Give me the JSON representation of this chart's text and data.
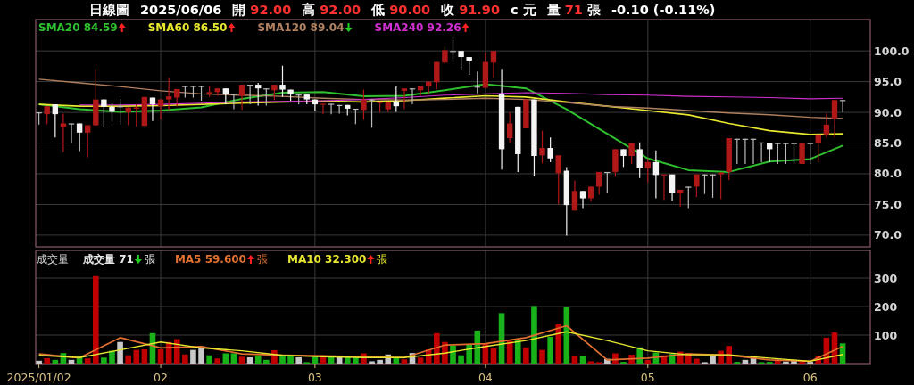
{
  "chart_data": [
    {
      "type": "candlestick",
      "annotations": [
        "日線圖",
        "2025/06/06",
        "開 92.00",
        "高 92.00",
        "低 90.00",
        "收 91.90",
        "c 元",
        "量 71 張",
        "-0.10 (-0.11%)"
      ],
      "categories": [
        "2025/01/02",
        null,
        null,
        null,
        null,
        null,
        null,
        null,
        null,
        null,
        null,
        null,
        null,
        null,
        null,
        "02",
        null,
        null,
        null,
        null,
        null,
        null,
        null,
        null,
        null,
        null,
        null,
        null,
        null,
        null,
        null,
        null,
        null,
        null,
        "03",
        null,
        null,
        null,
        null,
        null,
        null,
        null,
        null,
        null,
        null,
        null,
        null,
        null,
        null,
        null,
        null,
        null,
        null,
        null,
        null,
        "04",
        null,
        null,
        null,
        null,
        null,
        null,
        null,
        null,
        null,
        null,
        null,
        null,
        null,
        null,
        null,
        null,
        null,
        null,
        null,
        "05",
        null,
        null,
        null,
        null,
        null,
        null,
        null,
        null,
        null,
        null,
        null,
        null,
        null,
        null,
        null,
        null,
        null,
        null,
        null,
        "06",
        null,
        null,
        null,
        null
      ],
      "ohlc": [
        [
          90.0,
          90.0,
          88.0,
          89.9
        ],
        [
          89.7,
          91.0,
          88.1,
          91.0
        ],
        [
          91.3,
          91.3,
          85.9,
          89.7
        ],
        [
          87.6,
          89.8,
          83.5,
          88.2
        ],
        [
          88.2,
          88.2,
          85.0,
          88.1
        ],
        [
          88.2,
          88.2,
          83.7,
          86.7
        ],
        [
          86.7,
          87.9,
          82.7,
          87.9
        ],
        [
          87.9,
          97.1,
          87.9,
          92.1
        ],
        [
          92.1,
          92.1,
          87.6,
          90.9
        ],
        [
          90.9,
          91.5,
          88.5,
          90.1
        ],
        [
          91.0,
          92.2,
          88.0,
          90.9
        ],
        [
          90.0,
          90.8,
          87.9,
          90.8
        ],
        [
          90.6,
          91.3,
          87.7,
          90.8
        ],
        [
          87.8,
          92.5,
          87.8,
          92.5
        ],
        [
          92.4,
          92.4,
          88.6,
          91.3
        ],
        [
          91.0,
          92.1,
          88.8,
          92.1
        ],
        [
          92.1,
          95.6,
          90.4,
          92.6
        ],
        [
          92.4,
          93.8,
          91.0,
          93.8
        ],
        [
          94.3,
          94.3,
          92.4,
          94.2
        ],
        [
          94.3,
          94.3,
          92.4,
          94.2
        ],
        [
          94.3,
          94.3,
          91.9,
          94.2
        ],
        [
          92.9,
          94.2,
          92.5,
          93.3
        ],
        [
          93.3,
          93.9,
          92.7,
          93.9
        ],
        [
          93.9,
          93.9,
          91.3,
          93.0
        ],
        [
          93.0,
          93.0,
          90.5,
          92.9
        ],
        [
          92.7,
          94.5,
          90.4,
          94.5
        ],
        [
          94.5,
          94.5,
          91.3,
          94.4
        ],
        [
          94.5,
          94.8,
          91.1,
          93.9
        ],
        [
          93.9,
          93.9,
          91.1,
          93.8
        ],
        [
          93.6,
          94.5,
          92.0,
          94.5
        ],
        [
          94.5,
          97.6,
          92.5,
          93.7
        ],
        [
          93.7,
          93.7,
          91.9,
          92.9
        ],
        [
          92.9,
          92.9,
          91.3,
          92.8
        ],
        [
          92.9,
          92.9,
          91.3,
          92.1
        ],
        [
          92.1,
          92.1,
          90.3,
          91.3
        ],
        [
          91.3,
          91.4,
          89.7,
          91.4
        ],
        [
          91.4,
          91.4,
          89.7,
          91.3
        ],
        [
          91.2,
          91.2,
          89.8,
          91.1
        ],
        [
          91.2,
          91.2,
          89.5,
          90.6
        ],
        [
          90.6,
          90.6,
          88.1,
          90.5
        ],
        [
          90.4,
          93.7,
          88.8,
          92.1
        ],
        [
          92.1,
          92.1,
          87.5,
          92.0
        ],
        [
          91.5,
          91.7,
          90.0,
          91.7
        ],
        [
          90.5,
          91.7,
          90.0,
          91.7
        ],
        [
          91.8,
          94.2,
          90.1,
          91.0
        ],
        [
          93.5,
          93.9,
          90.5,
          93.9
        ],
        [
          93.9,
          93.9,
          91.3,
          93.8
        ],
        [
          93.6,
          94.3,
          92.7,
          94.3
        ],
        [
          94.2,
          95.0,
          93.0,
          95.0
        ],
        [
          94.9,
          98.2,
          93.8,
          98.2
        ],
        [
          98.1,
          100.7,
          97.9,
          100.1
        ],
        [
          100.0,
          102.2,
          98.2,
          99.9
        ],
        [
          100.0,
          100.0,
          96.8,
          99.0
        ],
        [
          99.0,
          99.0,
          96.1,
          98.4
        ],
        [
          94.2,
          96.6,
          93.1,
          94.1
        ],
        [
          94.0,
          99.8,
          93.9,
          98.2
        ],
        [
          98.1,
          100.0,
          95.6,
          100.0
        ],
        [
          93.0,
          97.1,
          80.7,
          84.0
        ],
        [
          85.8,
          90.0,
          85.1,
          88.2
        ],
        [
          90.9,
          90.9,
          80.3,
          83.2
        ],
        [
          87.4,
          92.1,
          87.4,
          92.1
        ],
        [
          92.1,
          92.1,
          79.6,
          82.9
        ],
        [
          83.0,
          87.0,
          81.7,
          84.2
        ],
        [
          84.2,
          85.9,
          81.9,
          82.5
        ],
        [
          80.1,
          83.0,
          75.0,
          83.0
        ],
        [
          80.5,
          81.1,
          69.9,
          74.9
        ],
        [
          74.0,
          78.9,
          74.0,
          77.2
        ],
        [
          77.2,
          77.2,
          74.4,
          76.0
        ],
        [
          76.0,
          77.9,
          75.5,
          77.9
        ],
        [
          77.9,
          80.3,
          76.6,
          80.3
        ],
        [
          80.3,
          80.3,
          76.9,
          80.2
        ],
        [
          80.3,
          84.0,
          79.5,
          84.0
        ],
        [
          84.0,
          84.0,
          81.1,
          82.9
        ],
        [
          82.9,
          85.0,
          81.6,
          85.0
        ],
        [
          84.0,
          85.1,
          79.3,
          80.9
        ],
        [
          80.9,
          82.5,
          78.6,
          81.9
        ],
        [
          81.9,
          83.8,
          76.0,
          79.8
        ],
        [
          79.8,
          79.9,
          75.7,
          79.9
        ],
        [
          79.9,
          79.9,
          75.6,
          76.9
        ],
        [
          76.9,
          77.4,
          74.6,
          77.4
        ],
        [
          77.9,
          77.9,
          74.4,
          77.8
        ],
        [
          77.9,
          79.9,
          76.2,
          79.9
        ],
        [
          79.9,
          79.9,
          76.7,
          79.8
        ],
        [
          79.9,
          79.9,
          76.1,
          79.8
        ],
        [
          79.9,
          80.2,
          75.9,
          80.2
        ],
        [
          80.3,
          85.8,
          79.0,
          85.8
        ],
        [
          85.7,
          85.7,
          81.6,
          85.6
        ],
        [
          85.7,
          85.7,
          81.6,
          85.6
        ],
        [
          85.7,
          85.7,
          81.6,
          85.6
        ],
        [
          85.1,
          85.1,
          81.9,
          85.0
        ],
        [
          85.0,
          85.0,
          81.9,
          84.0
        ],
        [
          85.0,
          85.0,
          81.6,
          84.9
        ],
        [
          85.0,
          85.0,
          81.6,
          84.9
        ],
        [
          85.0,
          85.0,
          81.6,
          84.9
        ],
        [
          81.6,
          85.0,
          81.6,
          85.0
        ],
        [
          85.0,
          85.0,
          81.6,
          84.9
        ],
        [
          85.0,
          86.4,
          81.8,
          86.4
        ],
        [
          86.4,
          89.8,
          85.9,
          88.0
        ],
        [
          89.0,
          92.0,
          85.9,
          92.0
        ],
        [
          92.0,
          92.0,
          90.0,
          91.9
        ]
      ],
      "series": [
        {
          "name": "SMA20 84.59",
          "type": "line",
          "color": "#2fbf2f",
          "values": [
            91.3,
            null,
            null,
            null,
            null,
            90.5,
            null,
            null,
            null,
            null,
            90.1,
            null,
            null,
            null,
            null,
            90.3,
            null,
            null,
            null,
            null,
            90.8,
            null,
            null,
            null,
            null,
            92.2,
            null,
            null,
            null,
            null,
            93.2,
            null,
            null,
            null,
            null,
            93.3,
            null,
            null,
            null,
            null,
            92.6,
            null,
            null,
            null,
            null,
            92.7,
            null,
            null,
            null,
            null,
            93.6,
            null,
            null,
            null,
            null,
            94.6,
            null,
            null,
            null,
            null,
            93.9,
            null,
            null,
            null,
            null,
            90.5,
            null,
            null,
            null,
            null,
            86.5,
            null,
            null,
            null,
            null,
            82.5,
            null,
            null,
            null,
            null,
            80.6,
            null,
            null,
            null,
            null,
            80.3,
            null,
            null,
            null,
            null,
            82.0,
            null,
            null,
            null,
            null,
            82.4,
            null,
            null,
            null,
            84.6
          ]
        },
        {
          "name": "SMA60 86.50",
          "type": "line",
          "color": "#e8e830",
          "values": [
            91.3,
            null,
            null,
            null,
            null,
            91.0,
            null,
            null,
            null,
            null,
            91.0,
            null,
            null,
            null,
            null,
            91.1,
            null,
            null,
            null,
            null,
            91.3,
            null,
            null,
            null,
            null,
            91.5,
            null,
            null,
            null,
            null,
            91.7,
            null,
            null,
            null,
            null,
            91.8,
            null,
            null,
            null,
            null,
            91.7,
            null,
            null,
            null,
            null,
            91.9,
            null,
            null,
            null,
            null,
            92.3,
            null,
            null,
            null,
            null,
            92.7,
            null,
            null,
            null,
            null,
            92.5,
            null,
            null,
            null,
            null,
            91.7,
            null,
            null,
            null,
            null,
            91.0,
            null,
            null,
            null,
            null,
            90.3,
            null,
            null,
            null,
            null,
            89.6,
            null,
            null,
            null,
            null,
            88.2,
            null,
            null,
            null,
            null,
            87.0,
            null,
            null,
            null,
            null,
            86.4,
            null,
            null,
            null,
            86.5
          ]
        },
        {
          "name": "SMA120 89.04",
          "type": "line",
          "color": "#b08060",
          "values": [
            95.4,
            null,
            null,
            null,
            null,
            94.8,
            null,
            null,
            null,
            null,
            94.2,
            null,
            null,
            null,
            null,
            93.5,
            null,
            null,
            null,
            null,
            93.0,
            null,
            null,
            null,
            null,
            92.8,
            null,
            null,
            null,
            null,
            92.6,
            null,
            null,
            null,
            null,
            92.3,
            null,
            null,
            null,
            null,
            92.1,
            null,
            null,
            null,
            null,
            92.0,
            null,
            null,
            null,
            null,
            92.1,
            null,
            null,
            null,
            null,
            92.3,
            null,
            null,
            null,
            null,
            92.1,
            null,
            null,
            null,
            null,
            91.6,
            null,
            null,
            null,
            null,
            91.0,
            null,
            null,
            null,
            null,
            90.7,
            null,
            null,
            null,
            null,
            90.3,
            null,
            null,
            null,
            null,
            89.9,
            null,
            null,
            null,
            null,
            89.6,
            null,
            null,
            null,
            null,
            89.2,
            null,
            null,
            null,
            89.0
          ]
        },
        {
          "name": "SMA240 92.26",
          "type": "line",
          "color": "#d030d0",
          "values": [
            null,
            null,
            null,
            null,
            null,
            91.2,
            null,
            null,
            null,
            null,
            91.2,
            null,
            null,
            null,
            null,
            91.3,
            null,
            null,
            null,
            null,
            91.5,
            null,
            null,
            null,
            null,
            91.7,
            null,
            null,
            null,
            null,
            91.8,
            null,
            null,
            null,
            null,
            91.9,
            null,
            null,
            null,
            null,
            92.1,
            null,
            null,
            null,
            null,
            92.4,
            null,
            null,
            null,
            null,
            92.8,
            null,
            null,
            null,
            null,
            93.0,
            null,
            null,
            null,
            null,
            93.2,
            null,
            null,
            null,
            null,
            93.1,
            null,
            null,
            null,
            null,
            92.9,
            null,
            null,
            null,
            null,
            92.8,
            null,
            null,
            null,
            null,
            92.6,
            null,
            null,
            null,
            null,
            92.5,
            null,
            null,
            null,
            null,
            92.4,
            null,
            null,
            null,
            null,
            92.2,
            null,
            null,
            null,
            92.3
          ]
        }
      ],
      "ylim": [
        68.1,
        105.1
      ],
      "yticks": [
        {
          "value": 70,
          "label": "70.0"
        },
        {
          "value": 75,
          "label": "75.0"
        },
        {
          "value": 80,
          "label": "80.0"
        },
        {
          "value": 85,
          "label": "85.0"
        },
        {
          "value": 90,
          "label": "90.0"
        },
        {
          "value": 95,
          "label": "95.0"
        },
        {
          "value": 100,
          "label": "100.0"
        }
      ],
      "grid": true,
      "tick_labels": "y"
    },
    {
      "type": "bar",
      "ylabel": "成交量",
      "annotations": [
        "張"
      ],
      "categories": [
        "2025/01/02",
        null,
        null,
        null,
        null,
        null,
        null,
        null,
        null,
        null,
        null,
        null,
        null,
        null,
        null,
        "02",
        null,
        null,
        null,
        null,
        null,
        null,
        null,
        null,
        null,
        null,
        null,
        null,
        null,
        null,
        null,
        null,
        null,
        null,
        "03",
        null,
        null,
        null,
        null,
        null,
        null,
        null,
        null,
        null,
        null,
        null,
        null,
        null,
        null,
        null,
        null,
        null,
        null,
        null,
        null,
        "04",
        null,
        null,
        null,
        null,
        null,
        null,
        null,
        null,
        null,
        null,
        null,
        null,
        null,
        null,
        null,
        null,
        null,
        null,
        null,
        "05",
        null,
        null,
        null,
        null,
        null,
        null,
        null,
        null,
        null,
        null,
        null,
        null,
        null,
        null,
        null,
        null,
        null,
        null,
        null,
        "06",
        null,
        null,
        null,
        null
      ],
      "series": [
        {
          "name": "成交量 71",
          "type": "bar",
          "values": [
            10,
            19,
            13,
            37,
            13,
            26,
            18,
            307,
            21,
            45,
            76,
            29,
            48,
            50,
            107,
            50,
            76,
            86,
            32,
            48,
            60,
            29,
            18,
            36,
            36,
            24,
            22,
            29,
            13,
            47,
            26,
            31,
            22,
            5,
            24,
            29,
            24,
            22,
            24,
            24,
            36,
            8,
            13,
            32,
            22,
            15,
            37,
            21,
            50,
            107,
            76,
            63,
            29,
            68,
            116,
            70,
            53,
            177,
            79,
            81,
            57,
            202,
            48,
            94,
            138,
            200,
            27,
            27,
            8,
            5,
            17,
            36,
            6,
            31,
            57,
            13,
            39,
            29,
            34,
            42,
            37,
            17,
            5,
            27,
            45,
            62,
            6,
            13,
            27,
            5,
            6,
            12,
            7,
            13,
            6,
            6,
            27,
            91,
            109,
            71
          ],
          "colors": [
            "#c8c8c8",
            "#c00000",
            "#19b319",
            "#19b319",
            "#c8c8c8",
            "#19b319",
            "#c00000",
            "#c00000",
            "#19b319",
            "#19b319",
            "#c8c8c8",
            "#c00000",
            "#c00000",
            "#c00000",
            "#19b319",
            "#c00000",
            "#c00000",
            "#c00000",
            "#c00000",
            "#c8c8c8",
            "#c8c8c8",
            "#19b319",
            "#c00000",
            "#19b319",
            "#19b319",
            "#c00000",
            "#c8c8c8",
            "#19b319",
            "#19b319",
            "#c00000",
            "#19b319",
            "#19b319",
            "#c8c8c8",
            "#19b319",
            "#19b319",
            "#c00000",
            "#19b319",
            "#c8c8c8",
            "#19b319",
            "#19b319",
            "#c00000",
            "#c8c8c8",
            "#c8c8c8",
            "#c8c8c8",
            "#19b319",
            "#c00000",
            "#c8c8c8",
            "#c00000",
            "#c00000",
            "#c00000",
            "#c00000",
            "#19b319",
            "#19b319",
            "#19b319",
            "#19b319",
            "#c00000",
            "#c00000",
            "#19b319",
            "#c00000",
            "#19b319",
            "#c00000",
            "#19b319",
            "#c00000",
            "#19b319",
            "#c00000",
            "#19b319",
            "#c00000",
            "#19b319",
            "#c00000",
            "#c00000",
            "#c8c8c8",
            "#c00000",
            "#19b319",
            "#c00000",
            "#19b319",
            "#c00000",
            "#19b319",
            "#c00000",
            "#19b319",
            "#c00000",
            "#c00000",
            "#c00000",
            "#c8c8c8",
            "#c8c8c8",
            "#c00000",
            "#c00000",
            "#19b319",
            "#c8c8c8",
            "#c8c8c8",
            "#19b319",
            "#19b319",
            "#c00000",
            "#c8c8c8",
            "#c8c8c8",
            "#c00000",
            "#c8c8c8",
            "#c00000",
            "#c00000",
            "#c00000",
            "#19b319"
          ]
        },
        {
          "name": "MA5 59.600",
          "type": "line",
          "color": "#e07030",
          "values": [
            34,
            null,
            null,
            null,
            null,
            20,
            null,
            null,
            null,
            null,
            91,
            null,
            null,
            null,
            null,
            55,
            null,
            null,
            null,
            null,
            60,
            null,
            null,
            null,
            null,
            34,
            null,
            null,
            null,
            null,
            29,
            null,
            null,
            null,
            null,
            27,
            null,
            null,
            null,
            null,
            24,
            null,
            null,
            null,
            null,
            21,
            null,
            null,
            null,
            null,
            65,
            null,
            null,
            null,
            null,
            70,
            null,
            null,
            null,
            null,
            91,
            null,
            null,
            null,
            null,
            133,
            null,
            null,
            null,
            null,
            13,
            null,
            null,
            null,
            null,
            19,
            null,
            null,
            null,
            null,
            34,
            null,
            null,
            null,
            null,
            29,
            null,
            null,
            null,
            null,
            13,
            null,
            null,
            null,
            null,
            8,
            null,
            null,
            null,
            60
          ]
        },
        {
          "name": "MA10 32.300",
          "type": "line",
          "color": "#e8e830",
          "values": [
            29,
            null,
            null,
            null,
            null,
            21,
            null,
            null,
            null,
            null,
            48,
            null,
            null,
            null,
            null,
            76,
            null,
            null,
            null,
            null,
            55,
            null,
            null,
            null,
            null,
            45,
            null,
            null,
            null,
            null,
            29,
            null,
            null,
            null,
            null,
            24,
            null,
            null,
            null,
            null,
            21,
            null,
            null,
            null,
            null,
            21,
            null,
            null,
            null,
            null,
            37,
            null,
            null,
            null,
            null,
            60,
            null,
            null,
            null,
            null,
            81,
            null,
            null,
            null,
            null,
            112,
            null,
            null,
            null,
            null,
            81,
            null,
            null,
            null,
            null,
            45,
            null,
            null,
            null,
            null,
            31,
            null,
            null,
            null,
            null,
            31,
            null,
            null,
            null,
            null,
            19,
            null,
            null,
            null,
            null,
            8,
            null,
            null,
            null,
            32
          ]
        }
      ],
      "ylim": [
        0,
        397
      ],
      "yticks": [
        100,
        200,
        300
      ],
      "grid": true
    }
  ]
}
